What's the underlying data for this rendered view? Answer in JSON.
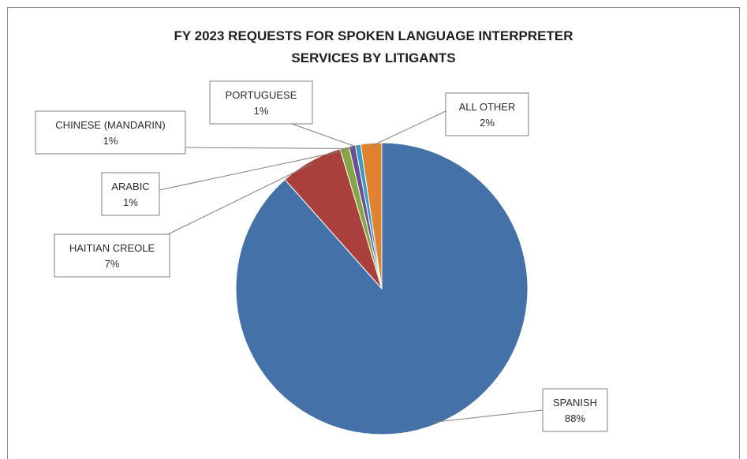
{
  "chart_data": {
    "type": "pie",
    "title_line1": "FY 2023 REQUESTS FOR SPOKEN LANGUAGE INTERPRETER",
    "title_line2": "SERVICES BY LITIGANTS",
    "start_angle_deg": 0,
    "slices": [
      {
        "label": "SPANISH",
        "pct_label": "88%",
        "value": 88.0,
        "color": "#4472a8"
      },
      {
        "label": "HAITIAN CREOLE",
        "pct_label": "7%",
        "value": 6.9,
        "color": "#a9403c"
      },
      {
        "label": "ARABIC",
        "pct_label": "1%",
        "value": 1.0,
        "color": "#86a545"
      },
      {
        "label": "CHINESE (MANDARIN)",
        "pct_label": "1%",
        "value": 0.7,
        "color": "#6a4f92"
      },
      {
        "label": "PORTUGUESE",
        "pct_label": "1%",
        "value": 0.6,
        "color": "#3d9ac4"
      },
      {
        "label": "ALL OTHER",
        "pct_label": "2%",
        "value": 2.3,
        "color": "#e0822f"
      }
    ]
  }
}
